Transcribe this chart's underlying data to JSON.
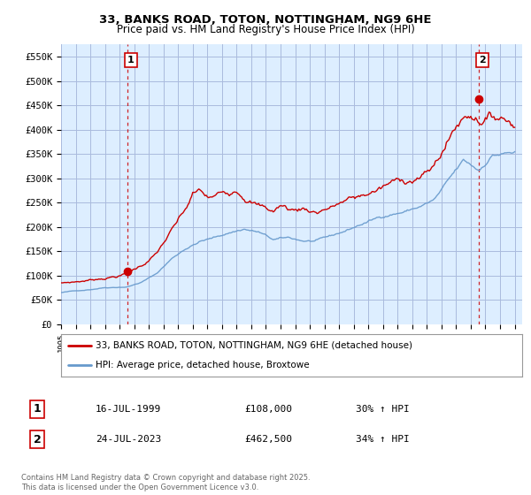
{
  "title": "33, BANKS ROAD, TOTON, NOTTINGHAM, NG9 6HE",
  "subtitle": "Price paid vs. HM Land Registry's House Price Index (HPI)",
  "ylim": [
    0,
    575000
  ],
  "ytick_values": [
    0,
    50000,
    100000,
    150000,
    200000,
    250000,
    300000,
    350000,
    400000,
    450000,
    500000,
    550000
  ],
  "ytick_labels": [
    "£0",
    "£50K",
    "£100K",
    "£150K",
    "£200K",
    "£250K",
    "£300K",
    "£350K",
    "£400K",
    "£450K",
    "£500K",
    "£550K"
  ],
  "bg_color": "#ffffff",
  "chart_bg_color": "#ddeeff",
  "grid_color": "#aabbdd",
  "sale1_date": 1999.54,
  "sale1_price": 108000,
  "sale1_label": "1",
  "sale2_date": 2023.56,
  "sale2_price": 462500,
  "sale2_label": "2",
  "line_color_red": "#cc0000",
  "line_color_blue": "#6699cc",
  "legend_label_red": "33, BANKS ROAD, TOTON, NOTTINGHAM, NG9 6HE (detached house)",
  "legend_label_blue": "HPI: Average price, detached house, Broxtowe",
  "annotation1_date": "16-JUL-1999",
  "annotation1_price": "£108,000",
  "annotation1_hpi": "30% ↑ HPI",
  "annotation2_date": "24-JUL-2023",
  "annotation2_price": "£462,500",
  "annotation2_hpi": "34% ↑ HPI",
  "footer": "Contains HM Land Registry data © Crown copyright and database right 2025.\nThis data is licensed under the Open Government Licence v3.0.",
  "xmin": 1995.0,
  "xmax": 2026.5
}
